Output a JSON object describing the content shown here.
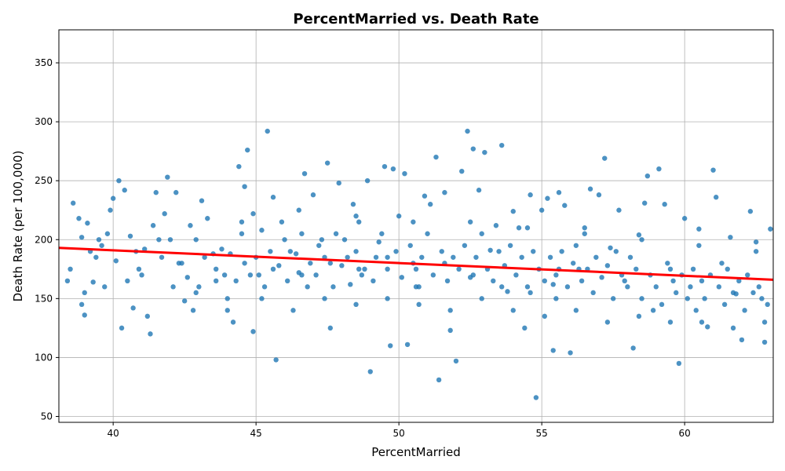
{
  "chart_data": {
    "type": "scatter",
    "title": "PercentMarried vs. Death Rate",
    "xlabel": "PercentMarried",
    "ylabel": "Death Rate (per 100,000)",
    "xlim": [
      38.1,
      63.1
    ],
    "ylim": [
      45,
      378
    ],
    "xticks": [
      40,
      45,
      50,
      55,
      60
    ],
    "yticks": [
      50,
      100,
      150,
      200,
      250,
      300,
      350
    ],
    "grid": true,
    "colors": {
      "points": "#1f77b4",
      "regression": "#ff0000",
      "grid": "#b0b0b0"
    },
    "regression_line": {
      "x": [
        38.1,
        63.1
      ],
      "y": [
        193,
        166
      ]
    },
    "points": [
      [
        38.6,
        231
      ],
      [
        38.8,
        218
      ],
      [
        38.9,
        202
      ],
      [
        39.1,
        214
      ],
      [
        38.5,
        175
      ],
      [
        38.4,
        165
      ],
      [
        38.9,
        145
      ],
      [
        39.0,
        136
      ],
      [
        39.3,
        164
      ],
      [
        39.2,
        190
      ],
      [
        39.5,
        200
      ],
      [
        39.8,
        205
      ],
      [
        40.0,
        235
      ],
      [
        40.2,
        250
      ],
      [
        40.4,
        242
      ],
      [
        39.9,
        225
      ],
      [
        40.6,
        203
      ],
      [
        40.8,
        190
      ],
      [
        41.0,
        170
      ],
      [
        40.3,
        125
      ],
      [
        40.7,
        142
      ],
      [
        41.2,
        135
      ],
      [
        41.3,
        120
      ],
      [
        41.5,
        240
      ],
      [
        41.8,
        222
      ],
      [
        41.9,
        253
      ],
      [
        42.2,
        240
      ],
      [
        42.0,
        200
      ],
      [
        42.3,
        180
      ],
      [
        42.5,
        148
      ],
      [
        42.7,
        212
      ],
      [
        42.9,
        200
      ],
      [
        43.1,
        233
      ],
      [
        43.3,
        218
      ],
      [
        43.0,
        160
      ],
      [
        42.8,
        140
      ],
      [
        43.5,
        188
      ],
      [
        43.9,
        170
      ],
      [
        44.0,
        150
      ],
      [
        44.2,
        130
      ],
      [
        44.4,
        262
      ],
      [
        44.6,
        245
      ],
      [
        44.7,
        276
      ],
      [
        44.9,
        222
      ],
      [
        44.8,
        170
      ],
      [
        44.9,
        122
      ],
      [
        45.2,
        208
      ],
      [
        45.4,
        292
      ],
      [
        45.6,
        236
      ],
      [
        45.7,
        98
      ],
      [
        45.9,
        215
      ],
      [
        46.2,
        190
      ],
      [
        46.5,
        172
      ],
      [
        46.7,
        256
      ],
      [
        47.0,
        238
      ],
      [
        47.3,
        200
      ],
      [
        47.5,
        265
      ],
      [
        47.6,
        125
      ],
      [
        47.9,
        248
      ],
      [
        48.2,
        185
      ],
      [
        48.4,
        230
      ],
      [
        48.7,
        170
      ],
      [
        48.9,
        250
      ],
      [
        49.0,
        88
      ],
      [
        49.3,
        198
      ],
      [
        49.5,
        262
      ],
      [
        49.7,
        110
      ],
      [
        49.8,
        260
      ],
      [
        50.0,
        220
      ],
      [
        50.2,
        256
      ],
      [
        50.3,
        111
      ],
      [
        50.5,
        180
      ],
      [
        50.7,
        160
      ],
      [
        50.9,
        237
      ],
      [
        51.1,
        230
      ],
      [
        51.3,
        270
      ],
      [
        51.4,
        81
      ],
      [
        51.6,
        240
      ],
      [
        51.8,
        123
      ],
      [
        52.0,
        97
      ],
      [
        52.2,
        258
      ],
      [
        52.4,
        292
      ],
      [
        52.6,
        277
      ],
      [
        52.8,
        242
      ],
      [
        53.0,
        274
      ],
      [
        53.2,
        191
      ],
      [
        53.4,
        212
      ],
      [
        53.6,
        280
      ],
      [
        53.8,
        156
      ],
      [
        54.0,
        224
      ],
      [
        54.2,
        210
      ],
      [
        54.4,
        125
      ],
      [
        54.6,
        238
      ],
      [
        54.8,
        66
      ],
      [
        55.0,
        225
      ],
      [
        55.2,
        235
      ],
      [
        55.4,
        106
      ],
      [
        55.6,
        240
      ],
      [
        55.8,
        229
      ],
      [
        56.0,
        104
      ],
      [
        56.3,
        175
      ],
      [
        56.5,
        210
      ],
      [
        56.7,
        243
      ],
      [
        57.0,
        238
      ],
      [
        57.2,
        269
      ],
      [
        57.4,
        193
      ],
      [
        57.7,
        225
      ],
      [
        57.9,
        165
      ],
      [
        58.2,
        108
      ],
      [
        58.4,
        204
      ],
      [
        58.6,
        231
      ],
      [
        58.7,
        254
      ],
      [
        58.9,
        140
      ],
      [
        59.1,
        260
      ],
      [
        59.3,
        230
      ],
      [
        59.5,
        175
      ],
      [
        59.8,
        95
      ],
      [
        60.0,
        218
      ],
      [
        60.2,
        160
      ],
      [
        60.5,
        209
      ],
      [
        60.8,
        126
      ],
      [
        61.0,
        259
      ],
      [
        61.1,
        236
      ],
      [
        61.3,
        180
      ],
      [
        61.6,
        202
      ],
      [
        61.8,
        154
      ],
      [
        62.0,
        115
      ],
      [
        62.3,
        224
      ],
      [
        62.5,
        198
      ],
      [
        62.7,
        150
      ],
      [
        62.8,
        113
      ],
      [
        63.0,
        209
      ],
      [
        39.6,
        195
      ],
      [
        39.4,
        185
      ],
      [
        39.7,
        160
      ],
      [
        40.1,
        182
      ],
      [
        40.9,
        175
      ],
      [
        41.1,
        192
      ],
      [
        41.6,
        200
      ],
      [
        41.4,
        212
      ],
      [
        42.1,
        160
      ],
      [
        42.4,
        180
      ],
      [
        42.6,
        168
      ],
      [
        43.2,
        185
      ],
      [
        43.6,
        175
      ],
      [
        43.8,
        192
      ],
      [
        44.1,
        188
      ],
      [
        44.3,
        165
      ],
      [
        44.5,
        205
      ],
      [
        45.0,
        185
      ],
      [
        45.1,
        170
      ],
      [
        45.3,
        160
      ],
      [
        45.5,
        190
      ],
      [
        45.8,
        178
      ],
      [
        46.0,
        200
      ],
      [
        46.1,
        165
      ],
      [
        46.4,
        188
      ],
      [
        46.6,
        205
      ],
      [
        46.8,
        160
      ],
      [
        46.9,
        180
      ],
      [
        47.1,
        170
      ],
      [
        47.2,
        195
      ],
      [
        47.4,
        185
      ],
      [
        47.7,
        160
      ],
      [
        47.8,
        205
      ],
      [
        48.0,
        178
      ],
      [
        48.1,
        200
      ],
      [
        48.3,
        162
      ],
      [
        48.5,
        190
      ],
      [
        48.6,
        215
      ],
      [
        48.8,
        175
      ],
      [
        49.1,
        165
      ],
      [
        49.2,
        185
      ],
      [
        49.4,
        205
      ],
      [
        49.6,
        175
      ],
      [
        49.9,
        190
      ],
      [
        50.1,
        168
      ],
      [
        50.4,
        195
      ],
      [
        50.6,
        175
      ],
      [
        50.8,
        185
      ],
      [
        51.0,
        205
      ],
      [
        51.2,
        170
      ],
      [
        51.5,
        190
      ],
      [
        51.7,
        165
      ],
      [
        51.9,
        185
      ],
      [
        52.1,
        175
      ],
      [
        52.3,
        195
      ],
      [
        52.5,
        168
      ],
      [
        52.7,
        185
      ],
      [
        52.9,
        205
      ],
      [
        53.1,
        175
      ],
      [
        53.3,
        165
      ],
      [
        53.5,
        190
      ],
      [
        53.7,
        178
      ],
      [
        53.9,
        195
      ],
      [
        54.1,
        170
      ],
      [
        54.3,
        185
      ],
      [
        54.5,
        160
      ],
      [
        54.7,
        190
      ],
      [
        54.9,
        175
      ],
      [
        55.1,
        165
      ],
      [
        55.3,
        185
      ],
      [
        55.5,
        170
      ],
      [
        55.7,
        190
      ],
      [
        55.9,
        160
      ],
      [
        56.1,
        180
      ],
      [
        56.2,
        195
      ],
      [
        56.4,
        165
      ],
      [
        56.6,
        175
      ],
      [
        56.8,
        155
      ],
      [
        56.9,
        185
      ],
      [
        57.1,
        168
      ],
      [
        57.3,
        178
      ],
      [
        57.5,
        150
      ],
      [
        57.6,
        190
      ],
      [
        57.8,
        170
      ],
      [
        58.0,
        160
      ],
      [
        58.1,
        185
      ],
      [
        58.3,
        175
      ],
      [
        58.5,
        150
      ],
      [
        58.8,
        170
      ],
      [
        59.0,
        160
      ],
      [
        59.2,
        145
      ],
      [
        59.4,
        180
      ],
      [
        59.6,
        165
      ],
      [
        59.7,
        155
      ],
      [
        59.9,
        170
      ],
      [
        60.1,
        150
      ],
      [
        60.3,
        175
      ],
      [
        60.4,
        140
      ],
      [
        60.6,
        165
      ],
      [
        60.7,
        150
      ],
      [
        60.9,
        170
      ],
      [
        61.2,
        160
      ],
      [
        61.4,
        145
      ],
      [
        61.5,
        175
      ],
      [
        61.7,
        155
      ],
      [
        61.9,
        165
      ],
      [
        62.1,
        140
      ],
      [
        62.2,
        170
      ],
      [
        62.4,
        155
      ],
      [
        62.6,
        160
      ],
      [
        62.9,
        145
      ],
      [
        39.0,
        155
      ],
      [
        40.5,
        165
      ],
      [
        41.7,
        185
      ],
      [
        42.9,
        155
      ],
      [
        44.0,
        140
      ],
      [
        45.2,
        150
      ],
      [
        46.3,
        140
      ],
      [
        47.4,
        150
      ],
      [
        48.5,
        145
      ],
      [
        49.6,
        150
      ],
      [
        50.7,
        145
      ],
      [
        51.8,
        140
      ],
      [
        52.9,
        150
      ],
      [
        54.0,
        140
      ],
      [
        55.1,
        135
      ],
      [
        56.2,
        140
      ],
      [
        57.3,
        130
      ],
      [
        58.4,
        135
      ],
      [
        59.5,
        130
      ],
      [
        60.6,
        130
      ],
      [
        61.7,
        125
      ],
      [
        62.8,
        130
      ],
      [
        44.5,
        215
      ],
      [
        46.5,
        225
      ],
      [
        48.5,
        220
      ],
      [
        50.5,
        215
      ],
      [
        52.5,
        215
      ],
      [
        54.5,
        210
      ],
      [
        56.5,
        205
      ],
      [
        58.5,
        200
      ],
      [
        60.5,
        195
      ],
      [
        62.5,
        190
      ],
      [
        55.5,
        150
      ],
      [
        55.6,
        175
      ],
      [
        55.4,
        162
      ],
      [
        54.6,
        155
      ],
      [
        53.6,
        160
      ],
      [
        52.6,
        170
      ],
      [
        51.6,
        180
      ],
      [
        50.6,
        160
      ],
      [
        49.6,
        185
      ],
      [
        48.6,
        175
      ],
      [
        47.6,
        180
      ],
      [
        46.6,
        170
      ],
      [
        45.6,
        175
      ],
      [
        44.6,
        180
      ],
      [
        43.6,
        165
      ]
    ]
  }
}
